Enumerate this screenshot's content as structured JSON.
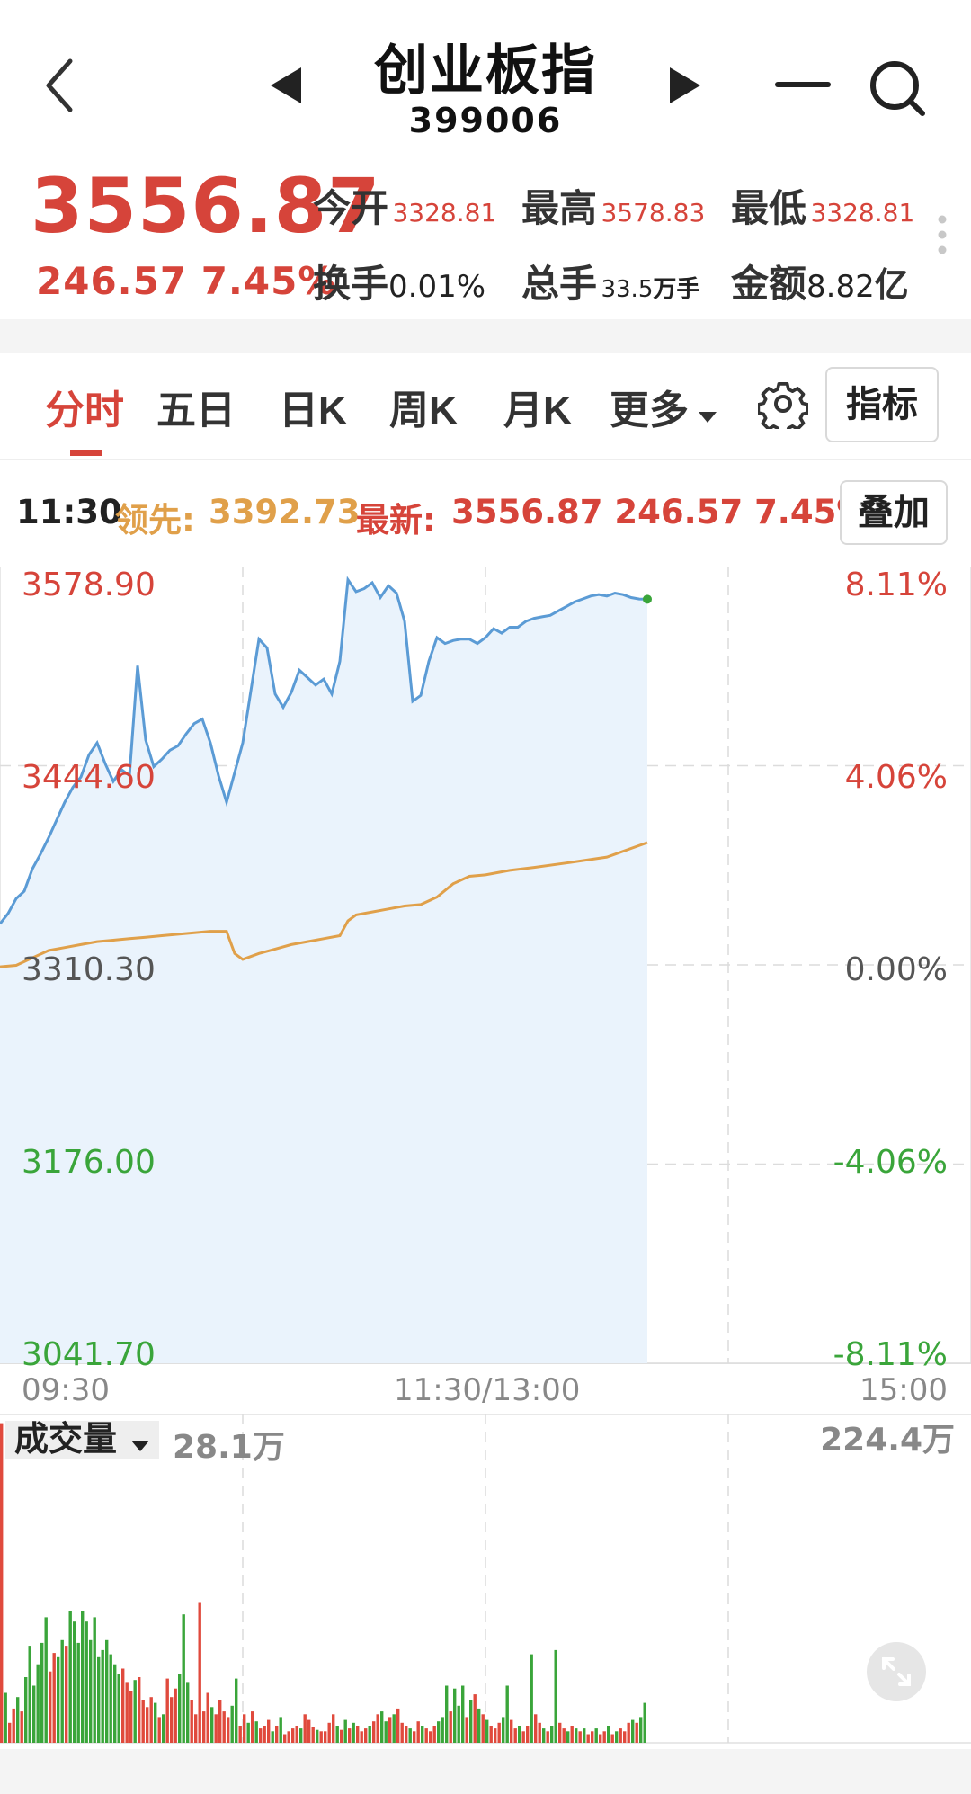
{
  "header": {
    "title": "创业板指",
    "code": "399006"
  },
  "quote": {
    "price": "3556.87",
    "change": "246.57",
    "change_pct": "7.45%",
    "open_label": "今开",
    "open_value": "3328.81",
    "high_label": "最高",
    "high_value": "3578.83",
    "low_label": "最低",
    "low_value": "3328.81",
    "turnover_label": "换手",
    "turnover_value": "0.01%",
    "volume_label": "总手",
    "volume_value": "33.5",
    "volume_unit": "万手",
    "amount_label": "金额",
    "amount_value": "8.82",
    "amount_unit": "亿"
  },
  "tabs": {
    "items": [
      {
        "label": "分时",
        "active": true
      },
      {
        "label": "五日",
        "active": false
      },
      {
        "label": "日K",
        "active": false
      },
      {
        "label": "周K",
        "active": false
      },
      {
        "label": "月K",
        "active": false
      },
      {
        "label": "更多",
        "active": false
      }
    ],
    "indicator_button": "指标"
  },
  "info": {
    "time": "11:30",
    "lead_label": "领先:",
    "lead_value": "3392.73",
    "latest_label": "最新:",
    "latest_value": "3556.87 246.57 7.45%",
    "overlay_button": "叠加"
  },
  "chart_data": {
    "type": "line",
    "base_price": 3310.3,
    "y_tick_labels": [
      "3578.90",
      "3444.60",
      "3310.30",
      "3176.00",
      "3041.70"
    ],
    "pct_tick_labels": [
      "8.11%",
      "4.06%",
      "0.00%",
      "-4.06%",
      "-8.11%"
    ],
    "ylim": [
      3041.7,
      3578.9
    ],
    "x_tick_labels": [
      "09:30",
      "11:30/13:00",
      "15:00"
    ],
    "total_minutes": 240,
    "series": [
      {
        "color": "#5b9bd5",
        "points": [
          [
            0,
            3338
          ],
          [
            2,
            3345
          ],
          [
            4,
            3355
          ],
          [
            6,
            3360
          ],
          [
            8,
            3375
          ],
          [
            10,
            3385
          ],
          [
            12,
            3396
          ],
          [
            14,
            3408
          ],
          [
            16,
            3420
          ],
          [
            18,
            3430
          ],
          [
            20,
            3437
          ],
          [
            22,
            3452
          ],
          [
            24,
            3460
          ],
          [
            26,
            3446
          ],
          [
            28,
            3434
          ],
          [
            30,
            3442
          ],
          [
            32,
            3438
          ],
          [
            34,
            3512
          ],
          [
            36,
            3462
          ],
          [
            38,
            3444
          ],
          [
            40,
            3449
          ],
          [
            42,
            3455
          ],
          [
            44,
            3458
          ],
          [
            46,
            3466
          ],
          [
            48,
            3473
          ],
          [
            50,
            3476
          ],
          [
            52,
            3460
          ],
          [
            54,
            3438
          ],
          [
            56,
            3420
          ],
          [
            58,
            3440
          ],
          [
            60,
            3460
          ],
          [
            62,
            3495
          ],
          [
            64,
            3530
          ],
          [
            66,
            3524
          ],
          [
            68,
            3493
          ],
          [
            70,
            3484
          ],
          [
            72,
            3494
          ],
          [
            74,
            3509
          ],
          [
            76,
            3504
          ],
          [
            78,
            3499
          ],
          [
            80,
            3503
          ],
          [
            82,
            3493
          ],
          [
            84,
            3515
          ],
          [
            86,
            3570
          ],
          [
            88,
            3562
          ],
          [
            90,
            3564
          ],
          [
            92,
            3568
          ],
          [
            94,
            3558
          ],
          [
            96,
            3566
          ],
          [
            98,
            3561
          ],
          [
            100,
            3542
          ],
          [
            102,
            3488
          ],
          [
            104,
            3492
          ],
          [
            106,
            3515
          ],
          [
            108,
            3531
          ],
          [
            110,
            3527
          ],
          [
            112,
            3529
          ],
          [
            114,
            3530
          ],
          [
            116,
            3530
          ],
          [
            118,
            3527
          ],
          [
            120,
            3531
          ],
          [
            122,
            3537
          ],
          [
            124,
            3534
          ],
          [
            126,
            3538
          ],
          [
            128,
            3538
          ],
          [
            130,
            3542
          ],
          [
            132,
            3544
          ],
          [
            134,
            3545
          ],
          [
            136,
            3546
          ],
          [
            138,
            3549
          ],
          [
            140,
            3552
          ],
          [
            142,
            3555
          ],
          [
            144,
            3557
          ],
          [
            146,
            3559
          ],
          [
            148,
            3560
          ],
          [
            150,
            3559
          ],
          [
            152,
            3561
          ],
          [
            154,
            3560
          ],
          [
            156,
            3558
          ],
          [
            158,
            3557
          ],
          [
            160,
            3556.87
          ]
        ]
      },
      {
        "color": "#e0a04a",
        "points": [
          [
            0,
            3309
          ],
          [
            4,
            3310
          ],
          [
            8,
            3315
          ],
          [
            12,
            3320
          ],
          [
            16,
            3322
          ],
          [
            20,
            3324
          ],
          [
            24,
            3326
          ],
          [
            28,
            3327
          ],
          [
            32,
            3328
          ],
          [
            36,
            3329
          ],
          [
            40,
            3330
          ],
          [
            44,
            3331
          ],
          [
            48,
            3332
          ],
          [
            52,
            3333
          ],
          [
            56,
            3333
          ],
          [
            58,
            3318
          ],
          [
            60,
            3314
          ],
          [
            64,
            3318
          ],
          [
            68,
            3321
          ],
          [
            72,
            3324
          ],
          [
            76,
            3326
          ],
          [
            80,
            3328
          ],
          [
            84,
            3330
          ],
          [
            86,
            3340
          ],
          [
            88,
            3344
          ],
          [
            92,
            3346
          ],
          [
            96,
            3348
          ],
          [
            100,
            3350
          ],
          [
            104,
            3351
          ],
          [
            108,
            3356
          ],
          [
            112,
            3365
          ],
          [
            116,
            3370
          ],
          [
            120,
            3371
          ],
          [
            126,
            3374
          ],
          [
            132,
            3376
          ],
          [
            140,
            3379
          ],
          [
            150,
            3383
          ],
          [
            160,
            3392.73
          ]
        ]
      }
    ],
    "volume": {
      "label": "成交量",
      "current": "28.1万",
      "max_label": "224.4万",
      "max": 224.4,
      "up_color": "#e04a3d",
      "down_color": "#3aa53a",
      "bars": [
        {
          "v": 224,
          "u": 1
        },
        {
          "v": 35,
          "u": 0
        },
        {
          "v": 14,
          "u": 1
        },
        {
          "v": 24,
          "u": 1
        },
        {
          "v": 32,
          "u": 0
        },
        {
          "v": 22,
          "u": 1
        },
        {
          "v": 46,
          "u": 0
        },
        {
          "v": 68,
          "u": 0
        },
        {
          "v": 40,
          "u": 0
        },
        {
          "v": 55,
          "u": 0
        },
        {
          "v": 70,
          "u": 0
        },
        {
          "v": 88,
          "u": 0
        },
        {
          "v": 50,
          "u": 1
        },
        {
          "v": 63,
          "u": 1
        },
        {
          "v": 60,
          "u": 0
        },
        {
          "v": 72,
          "u": 0
        },
        {
          "v": 68,
          "u": 1
        },
        {
          "v": 92,
          "u": 0
        },
        {
          "v": 85,
          "u": 0
        },
        {
          "v": 70,
          "u": 0
        },
        {
          "v": 92,
          "u": 0
        },
        {
          "v": 85,
          "u": 0
        },
        {
          "v": 72,
          "u": 0
        },
        {
          "v": 88,
          "u": 0
        },
        {
          "v": 60,
          "u": 0
        },
        {
          "v": 65,
          "u": 0
        },
        {
          "v": 72,
          "u": 0
        },
        {
          "v": 62,
          "u": 0
        },
        {
          "v": 55,
          "u": 0
        },
        {
          "v": 48,
          "u": 0
        },
        {
          "v": 52,
          "u": 1
        },
        {
          "v": 42,
          "u": 1
        },
        {
          "v": 36,
          "u": 1
        },
        {
          "v": 44,
          "u": 0
        },
        {
          "v": 46,
          "u": 1
        },
        {
          "v": 30,
          "u": 1
        },
        {
          "v": 25,
          "u": 1
        },
        {
          "v": 32,
          "u": 1
        },
        {
          "v": 28,
          "u": 0
        },
        {
          "v": 18,
          "u": 1
        },
        {
          "v": 20,
          "u": 0
        },
        {
          "v": 45,
          "u": 1
        },
        {
          "v": 32,
          "u": 1
        },
        {
          "v": 38,
          "u": 1
        },
        {
          "v": 48,
          "u": 0
        },
        {
          "v": 90,
          "u": 0
        },
        {
          "v": 42,
          "u": 0
        },
        {
          "v": 30,
          "u": 1
        },
        {
          "v": 20,
          "u": 1
        },
        {
          "v": 98,
          "u": 1
        },
        {
          "v": 22,
          "u": 1
        },
        {
          "v": 35,
          "u": 1
        },
        {
          "v": 25,
          "u": 0
        },
        {
          "v": 20,
          "u": 1
        },
        {
          "v": 30,
          "u": 1
        },
        {
          "v": 22,
          "u": 1
        },
        {
          "v": 18,
          "u": 1
        },
        {
          "v": 26,
          "u": 0
        },
        {
          "v": 45,
          "u": 0
        },
        {
          "v": 12,
          "u": 1
        },
        {
          "v": 20,
          "u": 1
        },
        {
          "v": 14,
          "u": 0
        },
        {
          "v": 22,
          "u": 1
        },
        {
          "v": 15,
          "u": 0
        },
        {
          "v": 10,
          "u": 1
        },
        {
          "v": 12,
          "u": 1
        },
        {
          "v": 16,
          "u": 1
        },
        {
          "v": 8,
          "u": 0
        },
        {
          "v": 12,
          "u": 1
        },
        {
          "v": 18,
          "u": 0
        },
        {
          "v": 6,
          "u": 1
        },
        {
          "v": 8,
          "u": 1
        },
        {
          "v": 10,
          "u": 1
        },
        {
          "v": 12,
          "u": 1
        },
        {
          "v": 10,
          "u": 0
        },
        {
          "v": 20,
          "u": 1
        },
        {
          "v": 16,
          "u": 1
        },
        {
          "v": 11,
          "u": 1
        },
        {
          "v": 9,
          "u": 0
        },
        {
          "v": 8,
          "u": 1
        },
        {
          "v": 8,
          "u": 1
        },
        {
          "v": 14,
          "u": 1
        },
        {
          "v": 20,
          "u": 1
        },
        {
          "v": 12,
          "u": 0
        },
        {
          "v": 9,
          "u": 1
        },
        {
          "v": 16,
          "u": 0
        },
        {
          "v": 10,
          "u": 1
        },
        {
          "v": 14,
          "u": 0
        },
        {
          "v": 12,
          "u": 1
        },
        {
          "v": 8,
          "u": 1
        },
        {
          "v": 10,
          "u": 1
        },
        {
          "v": 12,
          "u": 0
        },
        {
          "v": 15,
          "u": 1
        },
        {
          "v": 20,
          "u": 1
        },
        {
          "v": 22,
          "u": 0
        },
        {
          "v": 15,
          "u": 0
        },
        {
          "v": 18,
          "u": 1
        },
        {
          "v": 20,
          "u": 0
        },
        {
          "v": 24,
          "u": 1
        },
        {
          "v": 14,
          "u": 1
        },
        {
          "v": 12,
          "u": 1
        },
        {
          "v": 10,
          "u": 0
        },
        {
          "v": 8,
          "u": 1
        },
        {
          "v": 15,
          "u": 1
        },
        {
          "v": 12,
          "u": 0
        },
        {
          "v": 10,
          "u": 1
        },
        {
          "v": 8,
          "u": 1
        },
        {
          "v": 12,
          "u": 1
        },
        {
          "v": 15,
          "u": 0
        },
        {
          "v": 18,
          "u": 0
        },
        {
          "v": 40,
          "u": 0
        },
        {
          "v": 22,
          "u": 1
        },
        {
          "v": 38,
          "u": 0
        },
        {
          "v": 26,
          "u": 0
        },
        {
          "v": 40,
          "u": 0
        },
        {
          "v": 18,
          "u": 1
        },
        {
          "v": 30,
          "u": 0
        },
        {
          "v": 34,
          "u": 1
        },
        {
          "v": 24,
          "u": 0
        },
        {
          "v": 20,
          "u": 1
        },
        {
          "v": 16,
          "u": 0
        },
        {
          "v": 12,
          "u": 1
        },
        {
          "v": 10,
          "u": 1
        },
        {
          "v": 14,
          "u": 1
        },
        {
          "v": 18,
          "u": 0
        },
        {
          "v": 40,
          "u": 0
        },
        {
          "v": 16,
          "u": 1
        },
        {
          "v": 10,
          "u": 1
        },
        {
          "v": 12,
          "u": 0
        },
        {
          "v": 8,
          "u": 1
        },
        {
          "v": 12,
          "u": 1
        },
        {
          "v": 62,
          "u": 0
        },
        {
          "v": 20,
          "u": 1
        },
        {
          "v": 14,
          "u": 1
        },
        {
          "v": 10,
          "u": 0
        },
        {
          "v": 8,
          "u": 1
        },
        {
          "v": 12,
          "u": 0
        },
        {
          "v": 65,
          "u": 0
        },
        {
          "v": 14,
          "u": 1
        },
        {
          "v": 10,
          "u": 1
        },
        {
          "v": 8,
          "u": 0
        },
        {
          "v": 12,
          "u": 1
        },
        {
          "v": 10,
          "u": 0
        },
        {
          "v": 8,
          "u": 1
        },
        {
          "v": 10,
          "u": 0
        },
        {
          "v": 6,
          "u": 1
        },
        {
          "v": 8,
          "u": 1
        },
        {
          "v": 10,
          "u": 0
        },
        {
          "v": 6,
          "u": 1
        },
        {
          "v": 8,
          "u": 1
        },
        {
          "v": 12,
          "u": 0
        },
        {
          "v": 6,
          "u": 1
        },
        {
          "v": 8,
          "u": 0
        },
        {
          "v": 10,
          "u": 1
        },
        {
          "v": 8,
          "u": 1
        },
        {
          "v": 14,
          "u": 1
        },
        {
          "v": 16,
          "u": 0
        },
        {
          "v": 14,
          "u": 1
        },
        {
          "v": 18,
          "u": 0
        },
        {
          "v": 28,
          "u": 0
        }
      ]
    }
  }
}
